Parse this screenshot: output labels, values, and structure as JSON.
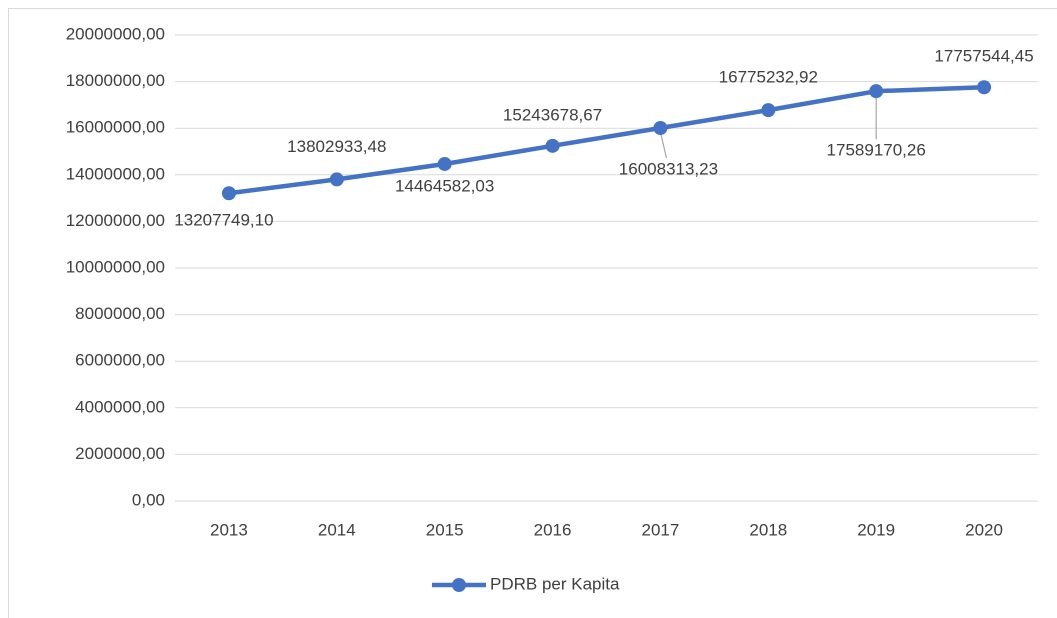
{
  "chart_data": {
    "type": "line",
    "categories": [
      "2013",
      "2014",
      "2015",
      "2016",
      "2017",
      "2018",
      "2019",
      "2020"
    ],
    "series": [
      {
        "name": "PDRB per Kapita",
        "color": "#4472c4",
        "values": [
          13207749.1,
          13802933.48,
          14464582.03,
          15243678.67,
          16008313.23,
          16775232.92,
          17589170.26,
          17757544.45
        ],
        "value_labels": [
          "13207749,10",
          "13802933,48",
          "14464582,03",
          "15243678,67",
          "16008313,23",
          "16775232,92",
          "17589170,26",
          "17757544,45"
        ]
      }
    ],
    "ylim": [
      0,
      20000000
    ],
    "yticks": [
      {
        "value": 0,
        "label": "0,00"
      },
      {
        "value": 2000000,
        "label": "2000000,00"
      },
      {
        "value": 4000000,
        "label": "4000000,00"
      },
      {
        "value": 6000000,
        "label": "6000000,00"
      },
      {
        "value": 8000000,
        "label": "8000000,00"
      },
      {
        "value": 10000000,
        "label": "10000000,00"
      },
      {
        "value": 12000000,
        "label": "12000000,00"
      },
      {
        "value": 14000000,
        "label": "14000000,00"
      },
      {
        "value": 16000000,
        "label": "16000000,00"
      },
      {
        "value": 18000000,
        "label": "18000000,00"
      },
      {
        "value": 20000000,
        "label": "20000000,00"
      }
    ],
    "grid": true,
    "legend": "bottom"
  }
}
